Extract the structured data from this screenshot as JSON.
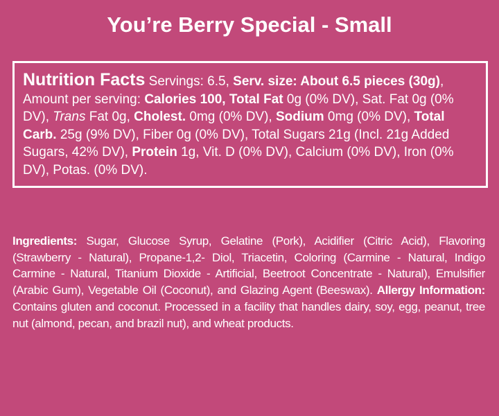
{
  "header": {
    "title": "You’re Berry Special - Small"
  },
  "nutrition": {
    "runs": [
      {
        "style": "heading",
        "text": "Nutrition Facts"
      },
      {
        "style": "normal",
        "text": " Servings: 6.5, "
      },
      {
        "style": "bold",
        "text": "Serv. size: About 6.5 pieces (30g)"
      },
      {
        "style": "normal",
        "text": ", Amount per serving: "
      },
      {
        "style": "bold",
        "text": "Calories 100, Total Fat"
      },
      {
        "style": "normal",
        "text": " 0g (0% DV), Sat. Fat 0g (0% DV), "
      },
      {
        "style": "italic",
        "text": "Trans"
      },
      {
        "style": "normal",
        "text": " Fat 0g, "
      },
      {
        "style": "bold",
        "text": "Cholest."
      },
      {
        "style": "normal",
        "text": " 0mg (0% DV), "
      },
      {
        "style": "bold",
        "text": "Sodium"
      },
      {
        "style": "normal",
        "text": " 0mg (0% DV), "
      },
      {
        "style": "bold",
        "text": "Total Carb."
      },
      {
        "style": "normal",
        "text": " 25g (9% DV), Fiber 0g (0% DV), Total Sugars 21g (Incl. 21g Added Sugars, 42% DV), "
      },
      {
        "style": "bold",
        "text": "Protein"
      },
      {
        "style": "normal",
        "text": " 1g, Vit. D (0% DV), Calcium (0% DV), Iron (0% DV), Potas. (0% DV)."
      }
    ]
  },
  "ingredients": {
    "runs": [
      {
        "style": "bold",
        "text": "Ingredients:"
      },
      {
        "style": "normal",
        "text": " Sugar, Glucose Syrup, Gelatine (Pork), Acidifier (Citric Acid), Flavoring (Strawberry - Natural), Propane-1,2- Diol, Triacetin, Coloring (Carmine - Natural, Indigo Carmine - Natural, Titanium Dioxide - Artificial, Beetroot Concentrate - Natural), Emulsifier (Arabic Gum), Vegetable Oil (Coconut), and Glazing Agent (Beeswax). "
      },
      {
        "style": "bold",
        "text": "Allergy Information:"
      },
      {
        "style": "normal",
        "text": " Contains gluten and coconut. Processed in a facility that handles dairy, soy, egg, peanut, tree nut (almond, pecan, and brazil nut), and wheat products."
      }
    ]
  }
}
